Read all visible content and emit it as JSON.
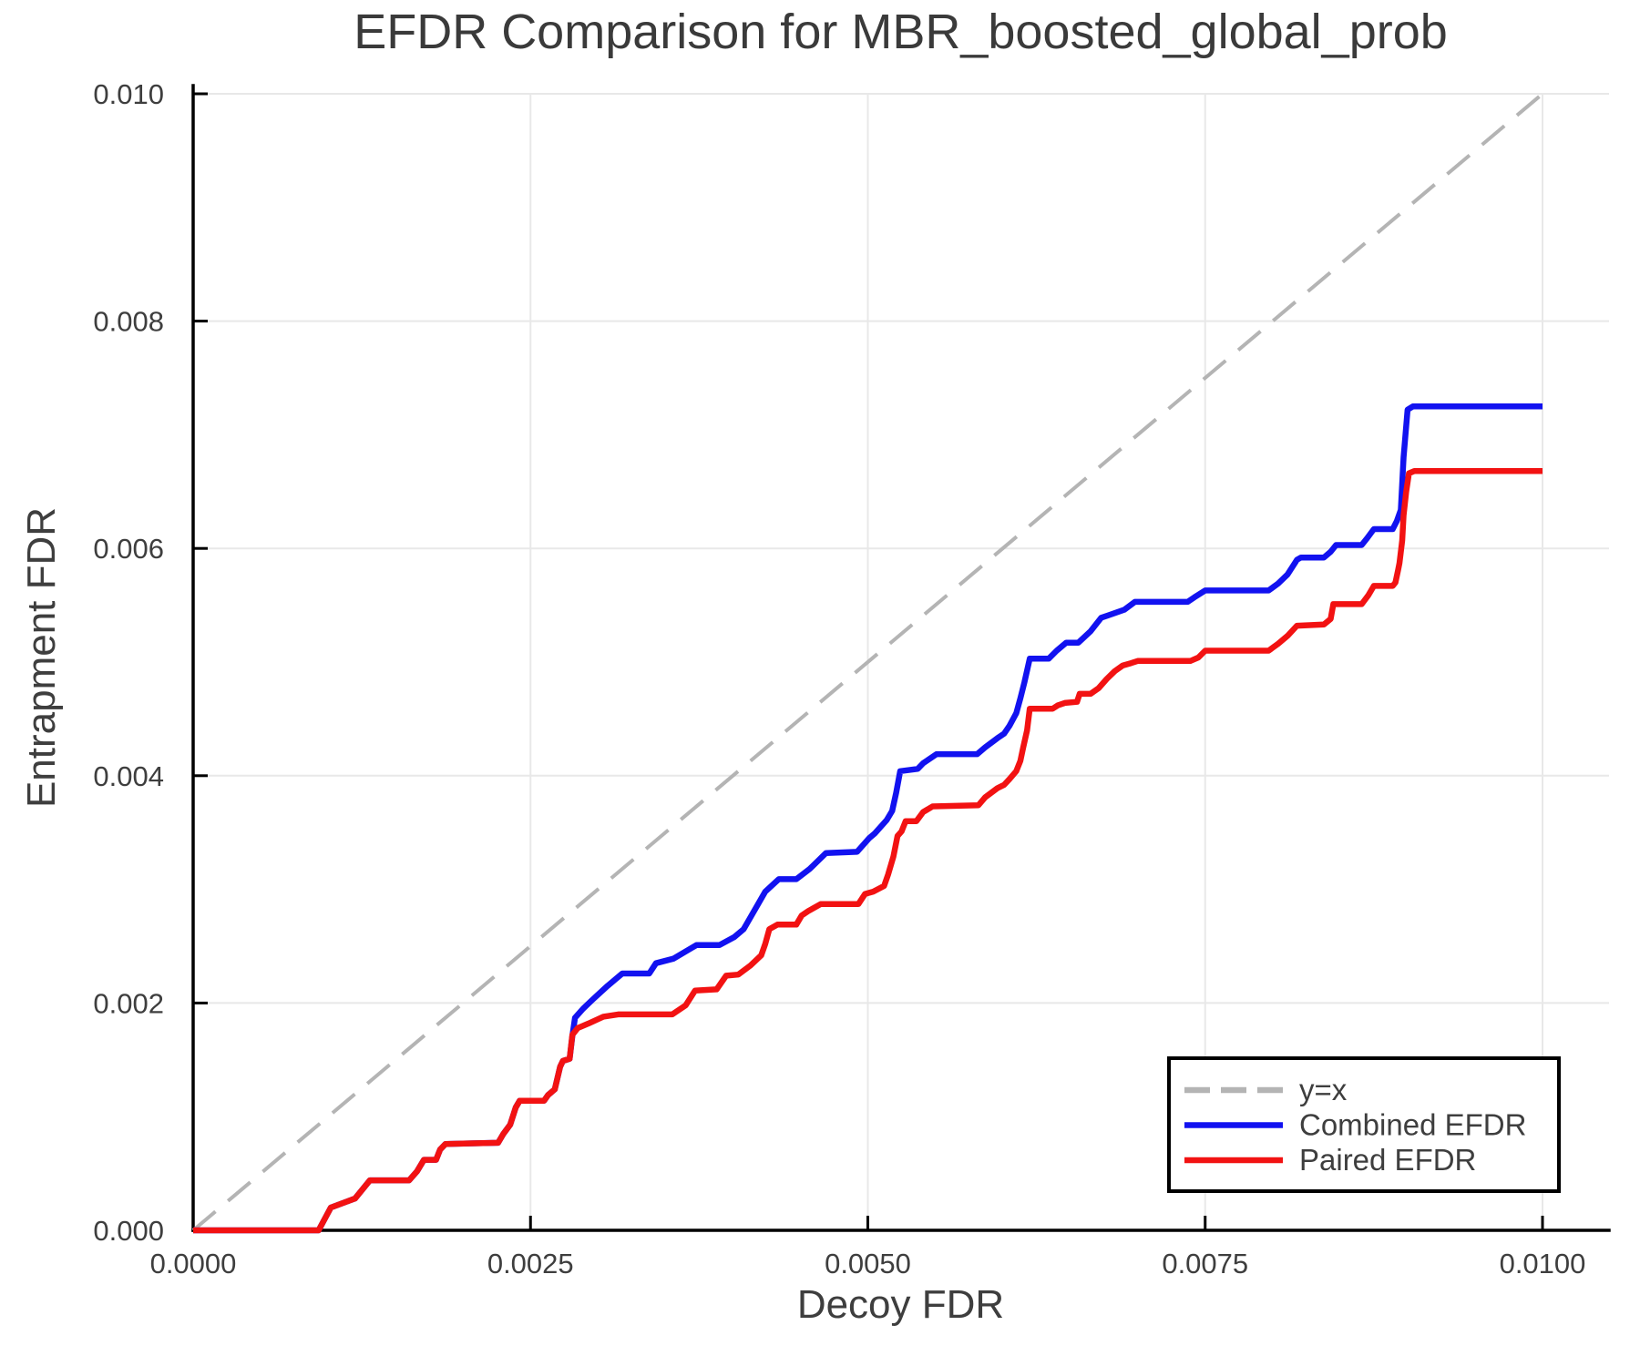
{
  "colors": {
    "combined": "#1212f0",
    "paired": "#f21212",
    "identity": "#b4b4b4",
    "grid": "#e8e8e8",
    "text": "#3e3e3e"
  },
  "chart_data": {
    "type": "line",
    "title": "EFDR Comparison for MBR_boosted_global_prob",
    "xlabel": "Decoy FDR",
    "ylabel": "Entrapment FDR",
    "xlim": [
      0,
      0.01
    ],
    "ylim": [
      0,
      0.01
    ],
    "grid": true,
    "xticks": {
      "values": [
        0,
        0.0025,
        0.005,
        0.0075,
        0.01
      ],
      "labels": [
        "0.0000",
        "0.0025",
        "0.0050",
        "0.0075",
        "0.0100"
      ]
    },
    "yticks": {
      "values": [
        0,
        0.002,
        0.004,
        0.006,
        0.008,
        0.01
      ],
      "labels": [
        "0.000",
        "0.002",
        "0.004",
        "0.006",
        "0.008",
        "0.010"
      ]
    },
    "legend": {
      "position": "lower right",
      "entries": [
        {
          "label": "y=x",
          "color": "#b4b4b4",
          "dashed": true
        },
        {
          "label": "Combined EFDR",
          "color": "#1212f0",
          "dashed": false
        },
        {
          "label": "Paired EFDR",
          "color": "#f21212",
          "dashed": false
        }
      ]
    },
    "series": [
      {
        "name": "y=x",
        "color": "#b4b4b4",
        "dashed": true,
        "width": 4,
        "points": [
          [
            0,
            0
          ],
          [
            0.01,
            0.01
          ]
        ]
      },
      {
        "name": "Combined EFDR",
        "color": "#1212f0",
        "dashed": false,
        "width": 6.5,
        "points": [
          [
            0,
            0
          ],
          [
            0.00093,
            0
          ],
          [
            0.00102,
            0.0002
          ],
          [
            0.0012,
            0.00028
          ],
          [
            0.00131,
            0.00044
          ],
          [
            0.0016,
            0.00044
          ],
          [
            0.00166,
            0.00052
          ],
          [
            0.00171,
            0.00062
          ],
          [
            0.0018,
            0.00062
          ],
          [
            0.00183,
            0.00071
          ],
          [
            0.00187,
            0.00076
          ],
          [
            0.00226,
            0.00077
          ],
          [
            0.0023,
            0.00085
          ],
          [
            0.00235,
            0.00093
          ],
          [
            0.00239,
            0.00108
          ],
          [
            0.00242,
            0.00114
          ],
          [
            0.0026,
            0.00114
          ],
          [
            0.00263,
            0.00119
          ],
          [
            0.00268,
            0.00124
          ],
          [
            0.00272,
            0.00144
          ],
          [
            0.00274,
            0.00149
          ],
          [
            0.00279,
            0.00151
          ],
          [
            0.00281,
            0.00171
          ],
          [
            0.00283,
            0.00187
          ],
          [
            0.00289,
            0.00195
          ],
          [
            0.00296,
            0.00203
          ],
          [
            0.00307,
            0.00215
          ],
          [
            0.00318,
            0.00226
          ],
          [
            0.00338,
            0.00226
          ],
          [
            0.00343,
            0.00235
          ],
          [
            0.00356,
            0.00239
          ],
          [
            0.00373,
            0.00251
          ],
          [
            0.0039,
            0.00251
          ],
          [
            0.00401,
            0.00258
          ],
          [
            0.00408,
            0.00265
          ],
          [
            0.00424,
            0.00298
          ],
          [
            0.00434,
            0.00309
          ],
          [
            0.00447,
            0.00309
          ],
          [
            0.00457,
            0.00318
          ],
          [
            0.00469,
            0.00332
          ],
          [
            0.00492,
            0.00333
          ],
          [
            0.00501,
            0.00345
          ],
          [
            0.00505,
            0.00349
          ],
          [
            0.00514,
            0.00361
          ],
          [
            0.00518,
            0.00369
          ],
          [
            0.00521,
            0.00385
          ],
          [
            0.00524,
            0.00404
          ],
          [
            0.00537,
            0.00406
          ],
          [
            0.00541,
            0.00411
          ],
          [
            0.00551,
            0.00419
          ],
          [
            0.00581,
            0.00419
          ],
          [
            0.00587,
            0.00425
          ],
          [
            0.00596,
            0.00433
          ],
          [
            0.00601,
            0.00437
          ],
          [
            0.00605,
            0.00444
          ],
          [
            0.0061,
            0.00455
          ],
          [
            0.00613,
            0.00468
          ],
          [
            0.00616,
            0.00482
          ],
          [
            0.0062,
            0.00503
          ],
          [
            0.00634,
            0.00503
          ],
          [
            0.0064,
            0.0051
          ],
          [
            0.00647,
            0.00517
          ],
          [
            0.00656,
            0.00517
          ],
          [
            0.00665,
            0.00527
          ],
          [
            0.00673,
            0.00539
          ],
          [
            0.00678,
            0.00541
          ],
          [
            0.0069,
            0.00546
          ],
          [
            0.00698,
            0.00553
          ],
          [
            0.00737,
            0.00553
          ],
          [
            0.00742,
            0.00557
          ],
          [
            0.0075,
            0.00563
          ],
          [
            0.00797,
            0.00563
          ],
          [
            0.00804,
            0.00569
          ],
          [
            0.00811,
            0.00577
          ],
          [
            0.00818,
            0.0059
          ],
          [
            0.00821,
            0.00592
          ],
          [
            0.00838,
            0.00592
          ],
          [
            0.00843,
            0.00597
          ],
          [
            0.00847,
            0.00603
          ],
          [
            0.00866,
            0.00603
          ],
          [
            0.0087,
            0.00609
          ],
          [
            0.00875,
            0.00617
          ],
          [
            0.00889,
            0.00617
          ],
          [
            0.00892,
            0.00624
          ],
          [
            0.00895,
            0.00634
          ],
          [
            0.00897,
            0.0068
          ],
          [
            0.009,
            0.00722
          ],
          [
            0.00904,
            0.00725
          ],
          [
            0.01,
            0.00725
          ]
        ]
      },
      {
        "name": "Paired EFDR",
        "color": "#f21212",
        "dashed": false,
        "width": 6.5,
        "points": [
          [
            0,
            0
          ],
          [
            0.00093,
            0
          ],
          [
            0.00102,
            0.0002
          ],
          [
            0.0012,
            0.00028
          ],
          [
            0.00131,
            0.00044
          ],
          [
            0.0016,
            0.00044
          ],
          [
            0.00166,
            0.00052
          ],
          [
            0.00171,
            0.00062
          ],
          [
            0.0018,
            0.00062
          ],
          [
            0.00183,
            0.00071
          ],
          [
            0.00187,
            0.00076
          ],
          [
            0.00226,
            0.00077
          ],
          [
            0.0023,
            0.00085
          ],
          [
            0.00235,
            0.00093
          ],
          [
            0.00239,
            0.00108
          ],
          [
            0.00242,
            0.00114
          ],
          [
            0.0026,
            0.00114
          ],
          [
            0.00263,
            0.00119
          ],
          [
            0.00268,
            0.00124
          ],
          [
            0.00272,
            0.00144
          ],
          [
            0.00274,
            0.00149
          ],
          [
            0.00279,
            0.00151
          ],
          [
            0.00281,
            0.00172
          ],
          [
            0.00285,
            0.00178
          ],
          [
            0.00293,
            0.00182
          ],
          [
            0.00304,
            0.00188
          ],
          [
            0.00315,
            0.0019
          ],
          [
            0.00355,
            0.0019
          ],
          [
            0.00365,
            0.00198
          ],
          [
            0.00372,
            0.00211
          ],
          [
            0.00388,
            0.00212
          ],
          [
            0.00395,
            0.00224
          ],
          [
            0.00404,
            0.00225
          ],
          [
            0.00413,
            0.00233
          ],
          [
            0.00421,
            0.00242
          ],
          [
            0.00424,
            0.00252
          ],
          [
            0.00427,
            0.00265
          ],
          [
            0.00433,
            0.00269
          ],
          [
            0.00447,
            0.00269
          ],
          [
            0.00451,
            0.00277
          ],
          [
            0.00456,
            0.00281
          ],
          [
            0.00465,
            0.00287
          ],
          [
            0.00493,
            0.00287
          ],
          [
            0.00498,
            0.00296
          ],
          [
            0.00504,
            0.00298
          ],
          [
            0.00512,
            0.00303
          ],
          [
            0.00515,
            0.00313
          ],
          [
            0.00519,
            0.00329
          ],
          [
            0.00522,
            0.00347
          ],
          [
            0.00525,
            0.00351
          ],
          [
            0.00528,
            0.0036
          ],
          [
            0.00536,
            0.0036
          ],
          [
            0.00541,
            0.00368
          ],
          [
            0.00548,
            0.00373
          ],
          [
            0.00582,
            0.00374
          ],
          [
            0.00587,
            0.00381
          ],
          [
            0.00596,
            0.00389
          ],
          [
            0.00601,
            0.00392
          ],
          [
            0.00605,
            0.00397
          ],
          [
            0.0061,
            0.00404
          ],
          [
            0.00613,
            0.00413
          ],
          [
            0.00615,
            0.00424
          ],
          [
            0.00618,
            0.0044
          ],
          [
            0.0062,
            0.00459
          ],
          [
            0.00637,
            0.00459
          ],
          [
            0.00641,
            0.00462
          ],
          [
            0.00646,
            0.00464
          ],
          [
            0.00655,
            0.00465
          ],
          [
            0.00657,
            0.00472
          ],
          [
            0.00665,
            0.00472
          ],
          [
            0.00671,
            0.00477
          ],
          [
            0.00677,
            0.00485
          ],
          [
            0.00683,
            0.00492
          ],
          [
            0.00689,
            0.00497
          ],
          [
            0.00695,
            0.00499
          ],
          [
            0.007,
            0.00501
          ],
          [
            0.00739,
            0.00501
          ],
          [
            0.00745,
            0.00504
          ],
          [
            0.0075,
            0.0051
          ],
          [
            0.00797,
            0.0051
          ],
          [
            0.00804,
            0.00516
          ],
          [
            0.00811,
            0.00523
          ],
          [
            0.00818,
            0.00532
          ],
          [
            0.00838,
            0.00533
          ],
          [
            0.00843,
            0.00538
          ],
          [
            0.00845,
            0.00551
          ],
          [
            0.00866,
            0.00551
          ],
          [
            0.00871,
            0.00559
          ],
          [
            0.00875,
            0.00567
          ],
          [
            0.00889,
            0.00567
          ],
          [
            0.00891,
            0.0057
          ],
          [
            0.00893,
            0.00581
          ],
          [
            0.00894,
            0.00587
          ],
          [
            0.00896,
            0.00607
          ],
          [
            0.00897,
            0.00629
          ],
          [
            0.00899,
            0.0065
          ],
          [
            0.00901,
            0.00666
          ],
          [
            0.00905,
            0.00668
          ],
          [
            0.01,
            0.00668
          ]
        ]
      }
    ]
  }
}
